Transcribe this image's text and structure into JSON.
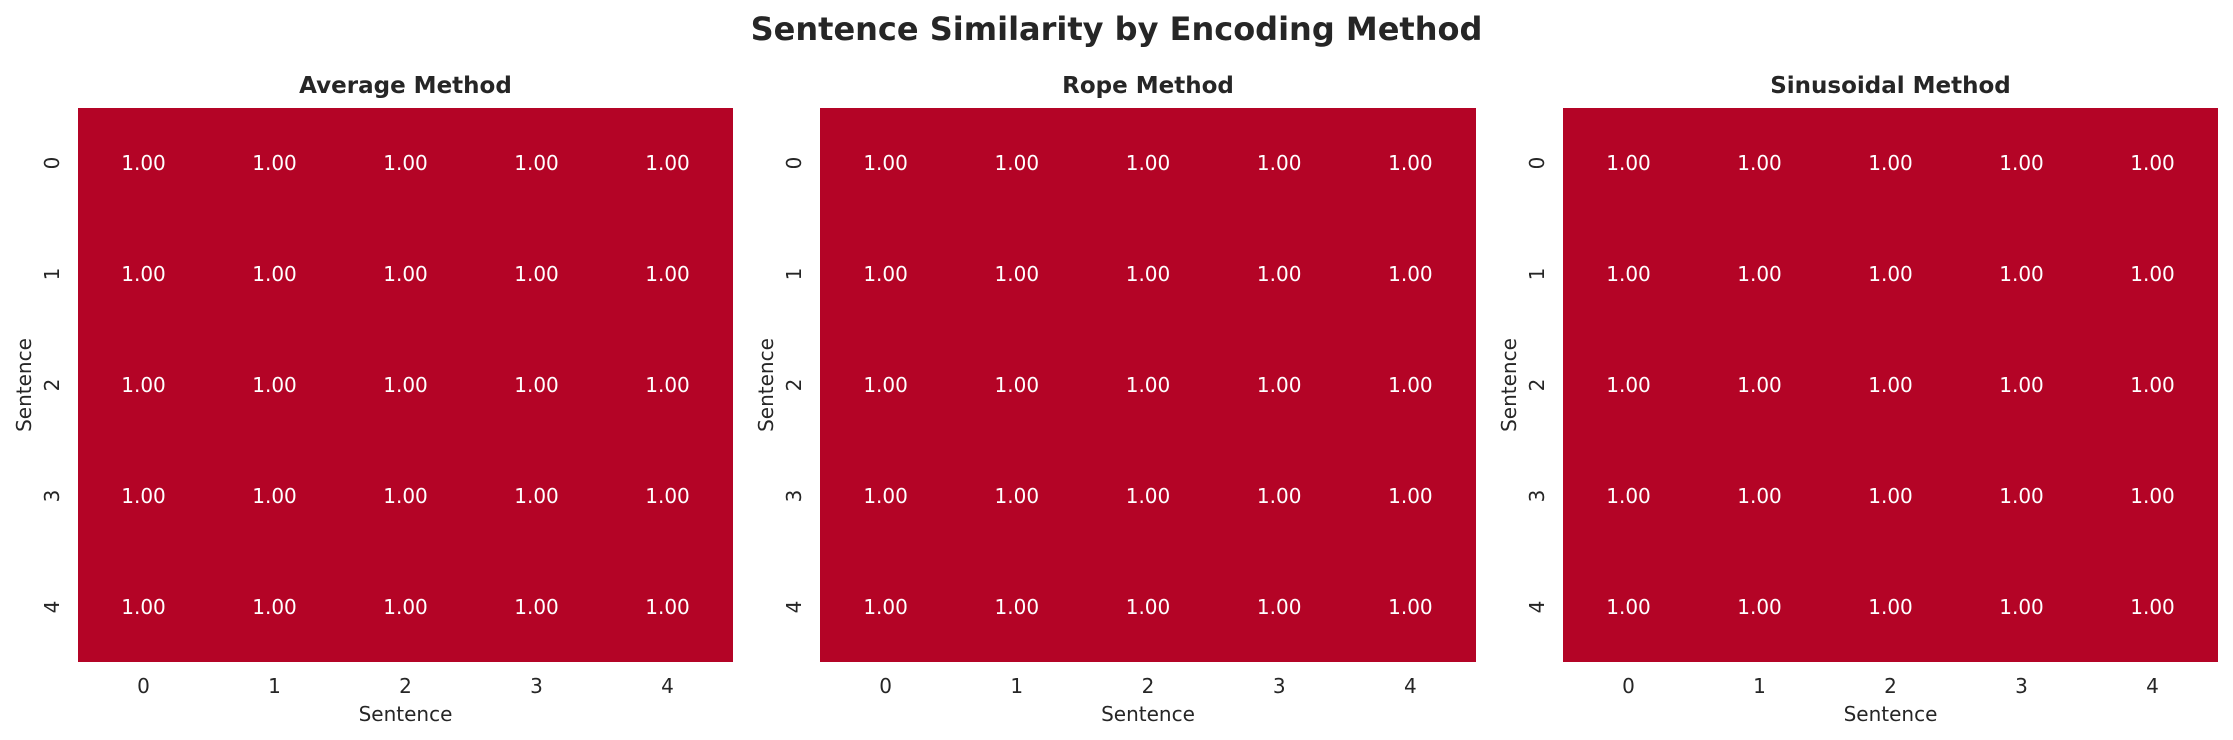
{
  "chart_data": {
    "type": "heatmap",
    "title": "Sentence Similarity by Encoding Method",
    "colormap": "coolwarm",
    "cell_color": "#b40426",
    "annotation_color": "#ffffff",
    "panels": [
      {
        "title": "Average Method",
        "xlabel": "Sentence",
        "ylabel": "Sentence",
        "x_ticks": [
          "0",
          "1",
          "2",
          "3",
          "4"
        ],
        "y_ticks": [
          "0",
          "1",
          "2",
          "3",
          "4"
        ],
        "values": [
          [
            "1.00",
            "1.00",
            "1.00",
            "1.00",
            "1.00"
          ],
          [
            "1.00",
            "1.00",
            "1.00",
            "1.00",
            "1.00"
          ],
          [
            "1.00",
            "1.00",
            "1.00",
            "1.00",
            "1.00"
          ],
          [
            "1.00",
            "1.00",
            "1.00",
            "1.00",
            "1.00"
          ],
          [
            "1.00",
            "1.00",
            "1.00",
            "1.00",
            "1.00"
          ]
        ]
      },
      {
        "title": "Rope Method",
        "xlabel": "Sentence",
        "ylabel": "Sentence",
        "x_ticks": [
          "0",
          "1",
          "2",
          "3",
          "4"
        ],
        "y_ticks": [
          "0",
          "1",
          "2",
          "3",
          "4"
        ],
        "values": [
          [
            "1.00",
            "1.00",
            "1.00",
            "1.00",
            "1.00"
          ],
          [
            "1.00",
            "1.00",
            "1.00",
            "1.00",
            "1.00"
          ],
          [
            "1.00",
            "1.00",
            "1.00",
            "1.00",
            "1.00"
          ],
          [
            "1.00",
            "1.00",
            "1.00",
            "1.00",
            "1.00"
          ],
          [
            "1.00",
            "1.00",
            "1.00",
            "1.00",
            "1.00"
          ]
        ]
      },
      {
        "title": "Sinusoidal Method",
        "xlabel": "Sentence",
        "ylabel": "Sentence",
        "x_ticks": [
          "0",
          "1",
          "2",
          "3",
          "4"
        ],
        "y_ticks": [
          "0",
          "1",
          "2",
          "3",
          "4"
        ],
        "values": [
          [
            "1.00",
            "1.00",
            "1.00",
            "1.00",
            "1.00"
          ],
          [
            "1.00",
            "1.00",
            "1.00",
            "1.00",
            "1.00"
          ],
          [
            "1.00",
            "1.00",
            "1.00",
            "1.00",
            "1.00"
          ],
          [
            "1.00",
            "1.00",
            "1.00",
            "1.00",
            "1.00"
          ],
          [
            "1.00",
            "1.00",
            "1.00",
            "1.00",
            "1.00"
          ]
        ]
      }
    ]
  }
}
